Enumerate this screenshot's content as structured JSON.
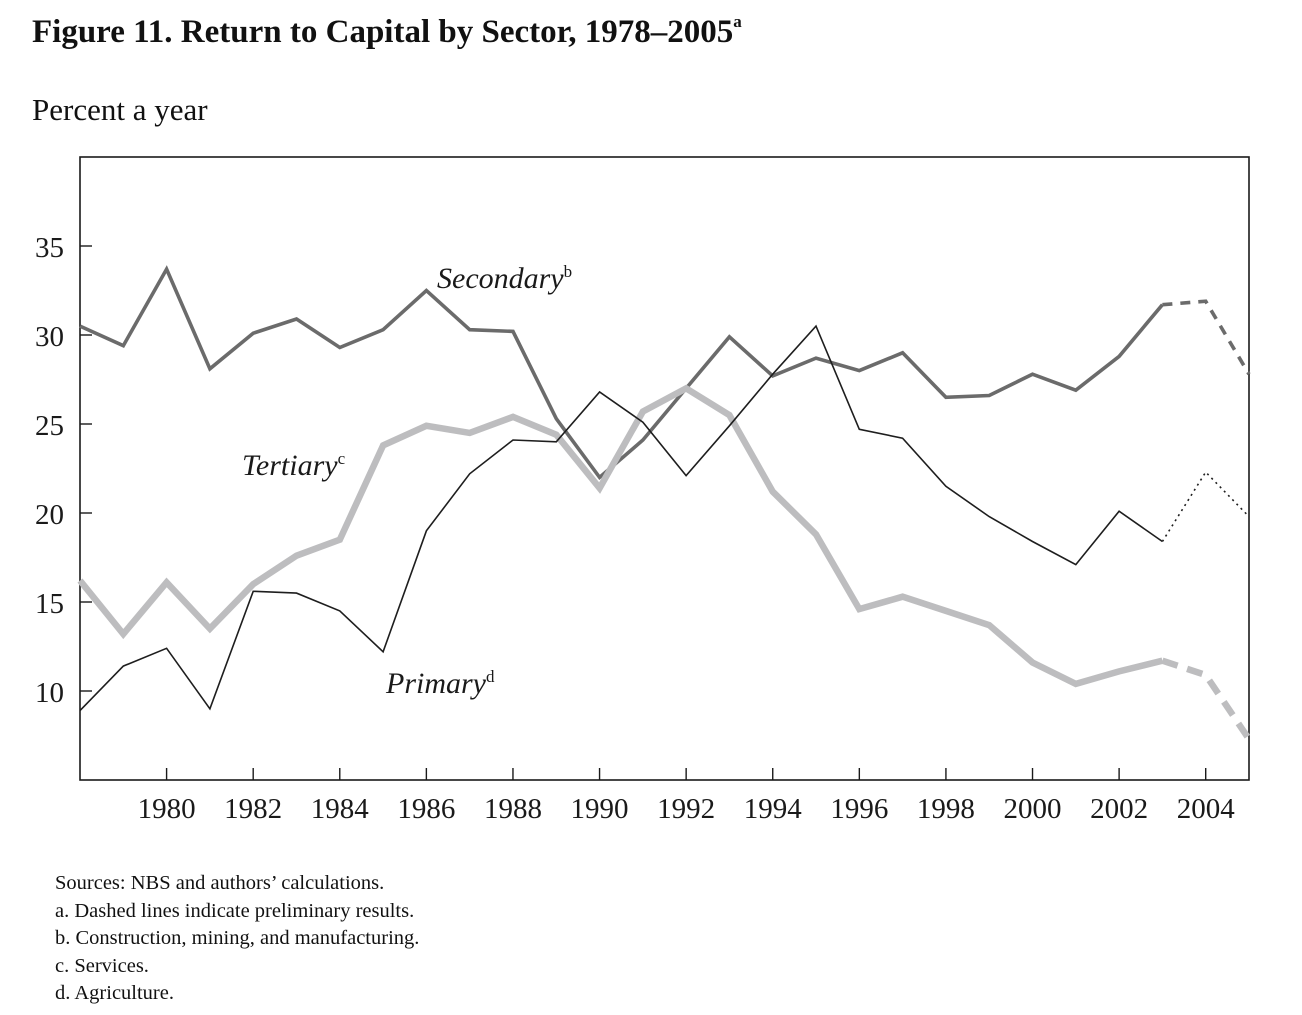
{
  "figure": {
    "title": "Figure 11.  Return to Capital by Sector, 1978–2005",
    "title_sup": "a",
    "subtitle": "Percent a year"
  },
  "chart_data": {
    "type": "line",
    "title": "Figure 11. Return to Capital by Sector, 1978–2005",
    "ylabel": "Percent a year",
    "xlabel": "",
    "xlim": [
      1978,
      2005
    ],
    "ylim": [
      5,
      40
    ],
    "yticks": [
      10,
      15,
      20,
      25,
      30,
      35
    ],
    "xticks": [
      1980,
      1982,
      1984,
      1986,
      1988,
      1990,
      1992,
      1994,
      1996,
      1998,
      2000,
      2002,
      2004
    ],
    "x": [
      1978,
      1979,
      1980,
      1981,
      1982,
      1983,
      1984,
      1985,
      1986,
      1987,
      1988,
      1989,
      1990,
      1991,
      1992,
      1993,
      1994,
      1995,
      1996,
      1997,
      1998,
      1999,
      2000,
      2001,
      2002,
      2003,
      2004,
      2005
    ],
    "grid": false,
    "legend": "inline labels",
    "series": [
      {
        "name": "Secondary",
        "sup": "b",
        "color": "#6b6b6b",
        "values": [
          30.5,
          29.4,
          33.7,
          28.1,
          30.1,
          30.9,
          29.3,
          30.3,
          32.5,
          30.3,
          30.2,
          25.3,
          22.0,
          24.1,
          27.0,
          29.9,
          27.7,
          28.7,
          28.0,
          29.0,
          26.5,
          26.6,
          27.8,
          26.9,
          28.8,
          31.7,
          31.9,
          27.8
        ],
        "preliminary_from": 2003
      },
      {
        "name": "Tertiary",
        "sup": "c",
        "color": "#bdbdbf",
        "values": [
          16.2,
          13.2,
          16.1,
          13.5,
          16.0,
          17.6,
          18.5,
          23.8,
          24.9,
          24.5,
          25.4,
          24.4,
          21.4,
          25.7,
          27.0,
          25.5,
          21.2,
          18.8,
          14.6,
          15.3,
          14.5,
          13.7,
          11.6,
          10.4,
          11.1,
          11.7,
          10.9,
          7.3
        ],
        "preliminary_from": 2003
      },
      {
        "name": "Primary",
        "sup": "d",
        "color": "#1e1e1e",
        "values": [
          8.9,
          11.4,
          12.4,
          9.0,
          15.6,
          15.5,
          14.5,
          12.2,
          19.0,
          22.2,
          24.1,
          24.0,
          26.8,
          25.1,
          22.1,
          24.9,
          27.8,
          30.5,
          24.7,
          24.2,
          21.5,
          19.8,
          18.4,
          17.1,
          20.1,
          18.4,
          22.3,
          19.8
        ],
        "preliminary_from": 2003
      }
    ]
  },
  "notes": {
    "sources": "Sources: NBS and authors’ calculations.",
    "a": "a. Dashed lines indicate preliminary results.",
    "b": "b. Construction, mining, and manufacturing.",
    "c": "c. Services.",
    "d": "d. Agriculture."
  }
}
